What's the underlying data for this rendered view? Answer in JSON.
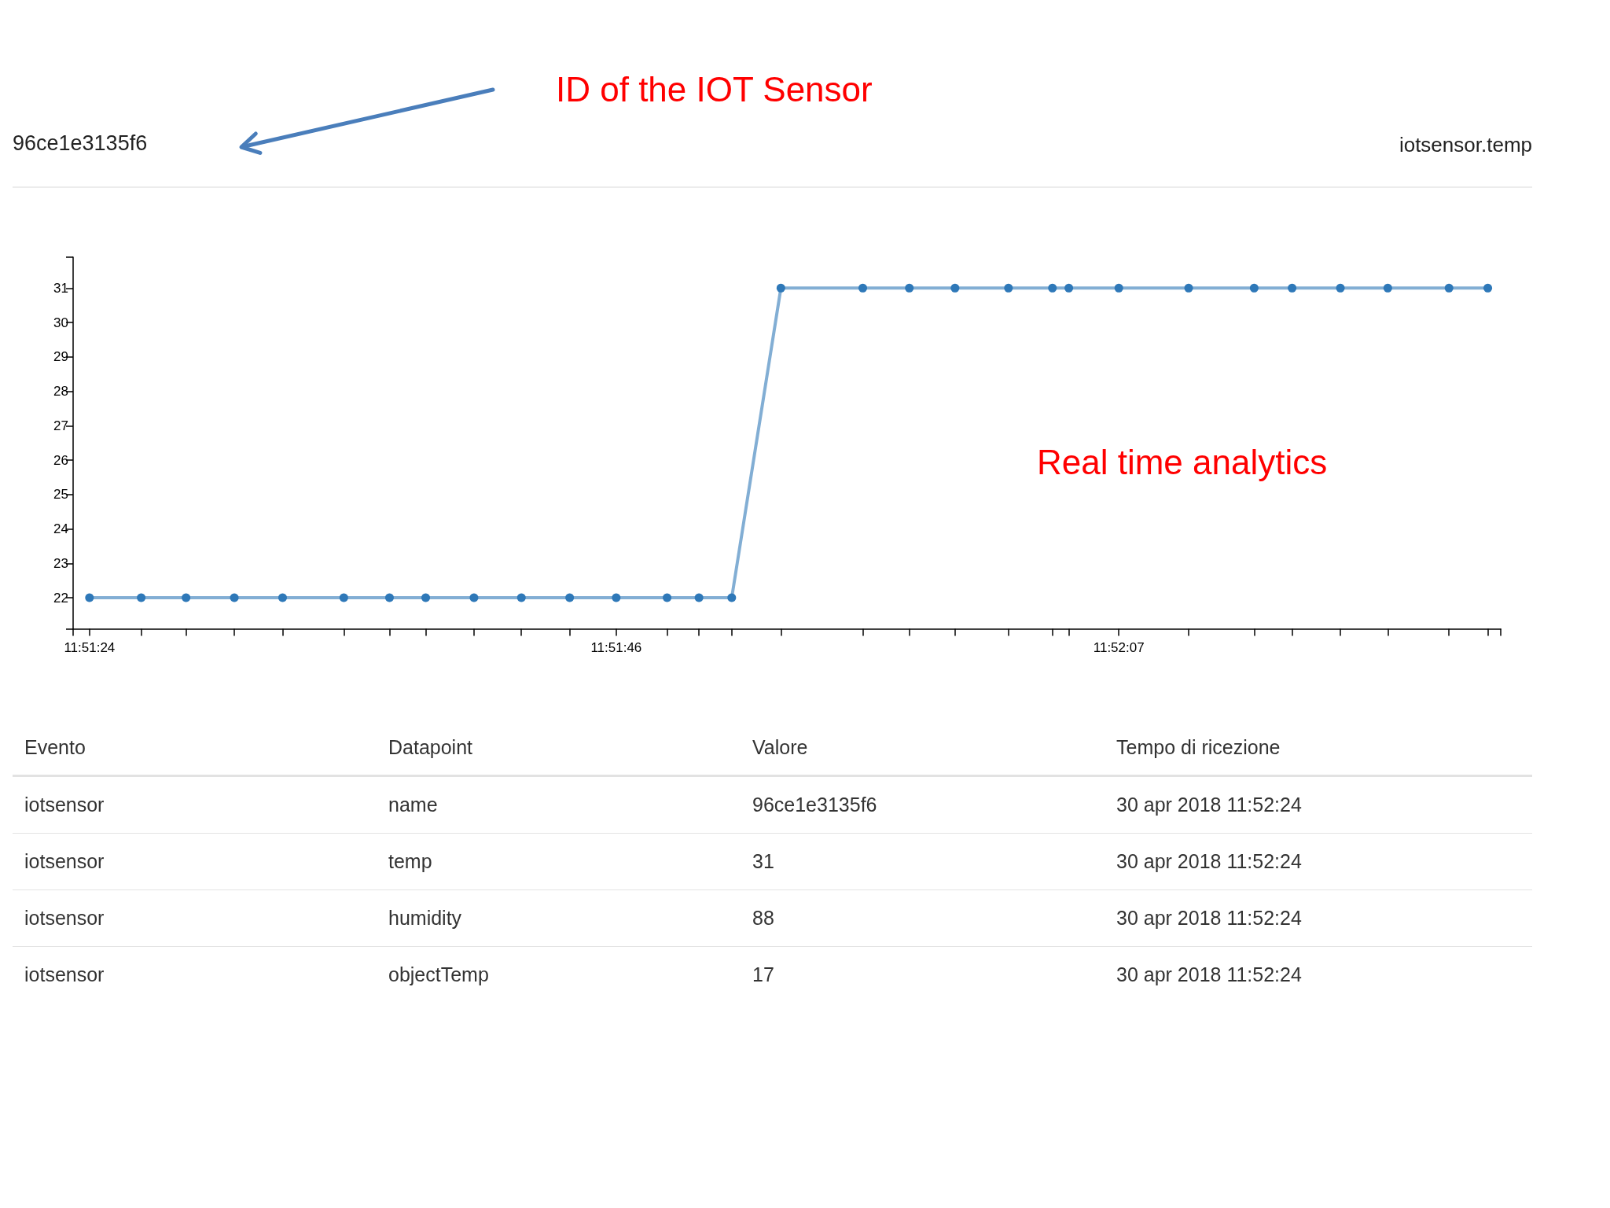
{
  "chart_data": [
    {
      "type": "line",
      "title": "96ce1e3135f6",
      "subtitle": "iotsensor.temp",
      "annotations": [
        "ID of the IOT Sensor",
        "Real time analytics"
      ],
      "x": [
        11.85667,
        11.85727,
        11.85779,
        11.85835,
        11.85891,
        11.85962,
        11.86015,
        11.86057,
        11.86113,
        11.86168,
        11.86224,
        11.86278,
        11.86337,
        11.86374,
        11.86412,
        11.86469,
        11.86564,
        11.86618,
        11.86671,
        11.86733,
        11.86784,
        11.86803,
        11.86861,
        11.86942,
        11.87018,
        11.87062,
        11.87118,
        11.87173,
        11.87244,
        11.87289
      ],
      "series": [
        {
          "color": "#2e78b8",
          "values": [
            22,
            22,
            22,
            22,
            22,
            22,
            22,
            22,
            22,
            22,
            22,
            22,
            22,
            22,
            22,
            31,
            31,
            31,
            31,
            31,
            31,
            31,
            31,
            31,
            31,
            31,
            31,
            31,
            31,
            31
          ]
        }
      ],
      "xlim": [
        11.85648,
        11.87304
      ],
      "xticks": [
        {
          "value": 11.85648,
          "label": null
        },
        {
          "value": 11.85667,
          "label": "11:51:24"
        },
        {
          "value": 11.85727,
          "label": null
        },
        {
          "value": 11.85779,
          "label": null
        },
        {
          "value": 11.85835,
          "label": null
        },
        {
          "value": 11.85891,
          "label": null
        },
        {
          "value": 11.85962,
          "label": null
        },
        {
          "value": 11.86015,
          "label": null
        },
        {
          "value": 11.86057,
          "label": null
        },
        {
          "value": 11.86113,
          "label": null
        },
        {
          "value": 11.86168,
          "label": null
        },
        {
          "value": 11.86224,
          "label": null
        },
        {
          "value": 11.86278,
          "label": "11:51:46"
        },
        {
          "value": 11.86337,
          "label": null
        },
        {
          "value": 11.86374,
          "label": null
        },
        {
          "value": 11.86412,
          "label": null
        },
        {
          "value": 11.86469,
          "label": null
        },
        {
          "value": 11.86564,
          "label": null
        },
        {
          "value": 11.86618,
          "label": null
        },
        {
          "value": 11.86671,
          "label": null
        },
        {
          "value": 11.86733,
          "label": null
        },
        {
          "value": 11.86784,
          "label": null
        },
        {
          "value": 11.86803,
          "label": null
        },
        {
          "value": 11.86861,
          "label": "11:52:07"
        },
        {
          "value": 11.86942,
          "label": null
        },
        {
          "value": 11.87018,
          "label": null
        },
        {
          "value": 11.87062,
          "label": null
        },
        {
          "value": 11.87118,
          "label": null
        },
        {
          "value": 11.87173,
          "label": null
        },
        {
          "value": 11.87244,
          "label": null
        },
        {
          "value": 11.87289,
          "label": null
        },
        {
          "value": 11.87304,
          "label": null
        }
      ],
      "ylim": [
        21.1,
        31.9
      ],
      "yticks": [
        {
          "value": 21.1,
          "label": null
        },
        22,
        23,
        24,
        25,
        26,
        27,
        28,
        29,
        30,
        31,
        {
          "value": 31.9,
          "label": null
        }
      ],
      "marker": "circle",
      "line_style": "solid"
    },
    {
      "type": "other",
      "categories": [
        "Evento",
        "Datapoint",
        "Valore",
        "Tempo di ricezione"
      ],
      "cell_labels": [
        [
          "iotsensor",
          "name",
          "96ce1e3135f6",
          "30 apr 2018 11:52:24"
        ],
        [
          "iotsensor",
          "temp",
          "31",
          "30 apr 2018 11:52:24"
        ],
        [
          "iotsensor",
          "humidity",
          "88",
          "30 apr 2018 11:52:24"
        ],
        [
          "iotsensor",
          "objectTemp",
          "17",
          "30 apr 2018 11:52:24"
        ]
      ]
    }
  ]
}
